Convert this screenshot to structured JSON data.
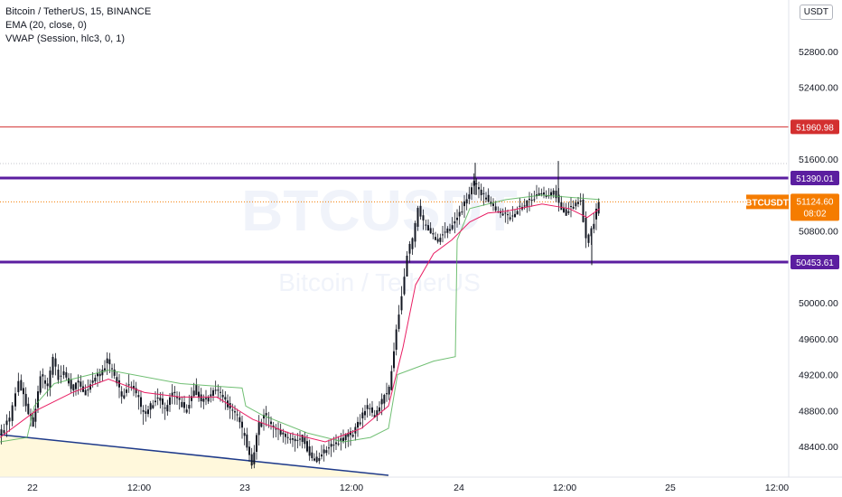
{
  "legend": {
    "symbol": "Bitcoin / TetherUS, 15, BINANCE",
    "ema": "EMA (20, close, 0)",
    "vwap": "VWAP (Session, hlc3, 0, 1)"
  },
  "currency": "USDT",
  "watermark": {
    "line1": "BTCUSDT",
    "line2": "Bitcoin / TetherUS"
  },
  "colors": {
    "candle": "#131722",
    "ema": "#e91e63",
    "vwap": "#4caf50",
    "level": "#5b1ea0",
    "resistance": "#d32f2f",
    "trendline": "#1e3a8a",
    "price": "#f57c00"
  },
  "chart_data": {
    "type": "candlestick",
    "symbol": "BTCUSDT",
    "interval": "15",
    "exchange": "BINANCE",
    "ylim": [
      48000,
      53300
    ],
    "y_ticks": [
      52800,
      52400,
      51600,
      50800,
      50000,
      49600,
      49200,
      48800,
      48400
    ],
    "y_tick_labels": [
      "52800.00",
      "52400.00",
      "51600.00",
      "50800.00",
      "50000.00",
      "49600.00",
      "49200.00",
      "48800.00",
      "48400.00"
    ],
    "x_ticks": [
      "22",
      "12:00",
      "23",
      "12:00",
      "24",
      "12:00",
      "25",
      "12:00"
    ],
    "horizontal_levels": [
      {
        "price": 51960.98,
        "label": "51960.98",
        "style": "thin-red"
      },
      {
        "price": 51390.01,
        "label": "51390.01",
        "style": "thick-purple"
      },
      {
        "price": 50453.61,
        "label": "50453.61",
        "style": "thick-purple"
      }
    ],
    "last_price": {
      "symbol": "BTCUSDT",
      "price": 51124.6,
      "label": "51124.60",
      "countdown": "08:02"
    },
    "trendline": {
      "from": [
        47900,
        48500
      ],
      "to": [
        48100,
        48070
      ],
      "note": "descending support from left edge"
    },
    "price_path": [
      [
        0,
        48520
      ],
      [
        12,
        48700
      ],
      [
        22,
        49150
      ],
      [
        30,
        48850
      ],
      [
        38,
        48650
      ],
      [
        46,
        49200
      ],
      [
        54,
        49050
      ],
      [
        60,
        49400
      ],
      [
        66,
        49150
      ],
      [
        72,
        49250
      ],
      [
        80,
        49050
      ],
      [
        88,
        49100
      ],
      [
        96,
        49000
      ],
      [
        104,
        49150
      ],
      [
        112,
        49200
      ],
      [
        120,
        49350
      ],
      [
        128,
        49200
      ],
      [
        136,
        48950
      ],
      [
        144,
        49100
      ],
      [
        152,
        49000
      ],
      [
        160,
        48750
      ],
      [
        168,
        48850
      ],
      [
        176,
        48950
      ],
      [
        184,
        48800
      ],
      [
        192,
        49000
      ],
      [
        200,
        48900
      ],
      [
        208,
        48800
      ],
      [
        216,
        49050
      ],
      [
        224,
        48900
      ],
      [
        232,
        48950
      ],
      [
        240,
        49050
      ],
      [
        248,
        48950
      ],
      [
        256,
        48800
      ],
      [
        264,
        48750
      ],
      [
        272,
        48500
      ],
      [
        280,
        48200
      ],
      [
        288,
        48650
      ],
      [
        296,
        48750
      ],
      [
        304,
        48600
      ],
      [
        312,
        48550
      ],
      [
        320,
        48500
      ],
      [
        328,
        48450
      ],
      [
        336,
        48500
      ],
      [
        344,
        48300
      ],
      [
        352,
        48250
      ],
      [
        360,
        48350
      ],
      [
        368,
        48400
      ],
      [
        376,
        48450
      ],
      [
        384,
        48500
      ],
      [
        392,
        48550
      ],
      [
        400,
        48700
      ],
      [
        408,
        48850
      ],
      [
        416,
        48750
      ],
      [
        424,
        48900
      ],
      [
        432,
        49050
      ],
      [
        440,
        49700
      ],
      [
        446,
        50100
      ],
      [
        452,
        50550
      ],
      [
        458,
        50700
      ],
      [
        464,
        51050
      ],
      [
        470,
        50900
      ],
      [
        478,
        50800
      ],
      [
        486,
        50700
      ],
      [
        494,
        50800
      ],
      [
        502,
        50850
      ],
      [
        510,
        51000
      ],
      [
        518,
        51150
      ],
      [
        526,
        51350
      ],
      [
        534,
        51200
      ],
      [
        542,
        51150
      ],
      [
        550,
        51050
      ],
      [
        558,
        51000
      ],
      [
        566,
        50950
      ],
      [
        574,
        51050
      ],
      [
        582,
        51100
      ],
      [
        590,
        51150
      ],
      [
        598,
        51250
      ],
      [
        606,
        51200
      ],
      [
        614,
        51250
      ],
      [
        620,
        51100
      ],
      [
        628,
        51000
      ],
      [
        636,
        51100
      ],
      [
        644,
        51150
      ],
      [
        650,
        50700
      ],
      [
        656,
        50800
      ],
      [
        664,
        51130
      ]
    ],
    "ema_path": [
      [
        0,
        48500
      ],
      [
        40,
        48800
      ],
      [
        80,
        49000
      ],
      [
        120,
        49150
      ],
      [
        160,
        49000
      ],
      [
        200,
        48950
      ],
      [
        240,
        48950
      ],
      [
        280,
        48700
      ],
      [
        320,
        48550
      ],
      [
        360,
        48450
      ],
      [
        400,
        48600
      ],
      [
        430,
        48850
      ],
      [
        446,
        49500
      ],
      [
        460,
        50200
      ],
      [
        480,
        50550
      ],
      [
        500,
        50700
      ],
      [
        520,
        50900
      ],
      [
        540,
        51000
      ],
      [
        560,
        51020
      ],
      [
        600,
        51100
      ],
      [
        630,
        51050
      ],
      [
        650,
        50950
      ],
      [
        664,
        51050
      ]
    ],
    "vwap_path": [
      [
        0,
        48450
      ],
      [
        30,
        48500
      ],
      [
        38,
        48850
      ],
      [
        60,
        49100
      ],
      [
        120,
        49250
      ],
      [
        200,
        49100
      ],
      [
        268,
        49050
      ],
      [
        272,
        48850
      ],
      [
        290,
        48750
      ],
      [
        340,
        48550
      ],
      [
        380,
        48450
      ],
      [
        410,
        48500
      ],
      [
        430,
        48600
      ],
      [
        440,
        49200
      ],
      [
        480,
        49350
      ],
      [
        504,
        49400
      ],
      [
        506,
        50700
      ],
      [
        520,
        51050
      ],
      [
        560,
        51150
      ],
      [
        600,
        51200
      ],
      [
        664,
        51150
      ]
    ],
    "x_tick_positions_note": "x ticks at 22, 12:00, 23, 12:00, 24, 12:00, 25, 12:00"
  }
}
